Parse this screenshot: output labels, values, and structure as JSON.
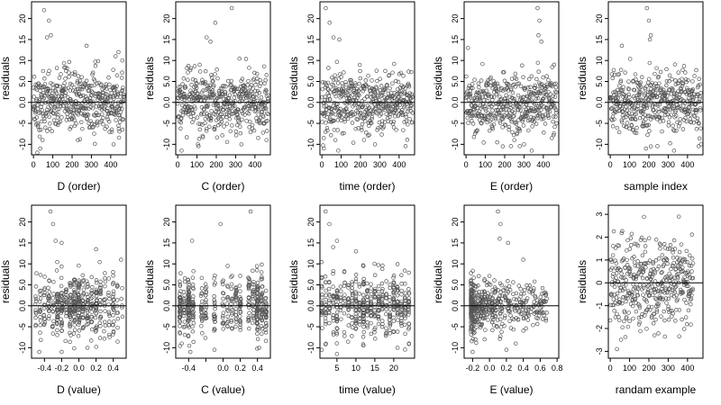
{
  "chart_data": [
    {
      "id": "p1",
      "type": "scatter",
      "xlabel": "D (order)",
      "ylabel": "residuals",
      "xlim": [
        -10,
        480
      ],
      "ylim": [
        -12.5,
        24
      ],
      "xticks": [
        0,
        100,
        200,
        300,
        400
      ],
      "xtick_labels": [
        "0",
        "100",
        "200",
        "300",
        "400"
      ],
      "yticks": [
        -10,
        -5,
        0,
        5,
        10,
        15,
        20
      ],
      "ytick_labels": [
        "-10",
        "-5",
        "0.0",
        "5.0",
        "10",
        "15",
        "20"
      ],
      "hline": 0,
      "dist": {
        "kind": "index",
        "n": 470,
        "y_scale": 3.6,
        "outliers": [
          [
            55,
            22
          ],
          [
            70,
            15.5
          ],
          [
            80,
            19.5
          ],
          [
            90,
            16
          ],
          [
            275,
            13.5
          ],
          [
            425,
            11
          ],
          [
            440,
            12
          ],
          [
            460,
            10
          ],
          [
            20,
            -12
          ],
          [
            35,
            -11
          ],
          [
            230,
            -9
          ],
          [
            415,
            -10
          ]
        ]
      }
    },
    {
      "id": "p2",
      "type": "scatter",
      "xlabel": "C (order)",
      "ylabel": "residuals",
      "xlim": [
        -10,
        480
      ],
      "ylim": [
        -12.5,
        24
      ],
      "xticks": [
        0,
        100,
        200,
        300,
        400
      ],
      "xtick_labels": [
        "0",
        "100",
        "200",
        "300",
        "400"
      ],
      "yticks": [
        -10,
        -5,
        0,
        5,
        10,
        15,
        20
      ],
      "ytick_labels": [
        "-10",
        "-5",
        "0.0",
        "5.0",
        "10",
        "15",
        "20"
      ],
      "hline": 0,
      "dist": {
        "kind": "index",
        "n": 470,
        "y_scale": 3.6,
        "outliers": [
          [
            195,
            19
          ],
          [
            280,
            22.5
          ],
          [
            150,
            15.5
          ],
          [
            170,
            14.5
          ],
          [
            20,
            -11.5
          ],
          [
            105,
            -10
          ],
          [
            330,
            -10
          ],
          [
            460,
            -9
          ]
        ]
      }
    },
    {
      "id": "p3",
      "type": "scatter",
      "xlabel": "time (order)",
      "ylabel": "residuals",
      "xlim": [
        -10,
        480
      ],
      "ylim": [
        -12.5,
        24
      ],
      "xticks": [
        0,
        100,
        200,
        300,
        400
      ],
      "xtick_labels": [
        "0",
        "100",
        "200",
        "300",
        "400"
      ],
      "yticks": [
        -10,
        -5,
        0,
        5,
        10,
        15,
        20
      ],
      "ytick_labels": [
        "-10",
        "-5",
        "0.0",
        "5.0",
        "10",
        "15",
        "20"
      ],
      "hline": 0,
      "dist": {
        "kind": "index",
        "n": 470,
        "y_scale": 3.6,
        "outliers": [
          [
            20,
            22.5
          ],
          [
            40,
            19
          ],
          [
            60,
            15.5
          ],
          [
            90,
            15
          ],
          [
            10,
            -11
          ],
          [
            85,
            -11.5
          ],
          [
            70,
            -9
          ],
          [
            275,
            -10
          ]
        ]
      }
    },
    {
      "id": "p4",
      "type": "scatter",
      "xlabel": "E (order)",
      "ylabel": "residuals",
      "xlim": [
        -10,
        480
      ],
      "ylim": [
        -12.5,
        24
      ],
      "xticks": [
        0,
        100,
        200,
        300,
        400
      ],
      "xtick_labels": [
        "0",
        "100",
        "200",
        "300",
        "400"
      ],
      "yticks": [
        -10,
        -5,
        0,
        5,
        10,
        15,
        20
      ],
      "ytick_labels": [
        "-10",
        "-5",
        "0.0",
        "5.0",
        "10",
        "15",
        "20"
      ],
      "hline": 0,
      "dist": {
        "kind": "index",
        "n": 470,
        "y_scale": 3.6,
        "outliers": [
          [
            370,
            22.5
          ],
          [
            380,
            19.5
          ],
          [
            375,
            16
          ],
          [
            390,
            14.5
          ],
          [
            10,
            13
          ],
          [
            300,
            -10
          ],
          [
            340,
            -11.5
          ],
          [
            250,
            -9
          ],
          [
            190,
            -10.5
          ]
        ]
      }
    },
    {
      "id": "p5",
      "type": "scatter",
      "xlabel": "sample index",
      "ylabel": "residuals",
      "xlim": [
        -10,
        480
      ],
      "ylim": [
        -12.5,
        24
      ],
      "xticks": [
        0,
        100,
        200,
        300,
        400
      ],
      "xtick_labels": [
        "0",
        "100",
        "200",
        "300",
        "400"
      ],
      "yticks": [
        -10,
        -5,
        0,
        5,
        10,
        15,
        20
      ],
      "ytick_labels": [
        "-10",
        "-5",
        "0.0",
        "5.0",
        "10",
        "15",
        "20"
      ],
      "hline": 0,
      "dist": {
        "kind": "index",
        "n": 470,
        "y_scale": 3.6,
        "outliers": [
          [
            190,
            22.5
          ],
          [
            200,
            19.5
          ],
          [
            210,
            16
          ],
          [
            205,
            15
          ],
          [
            60,
            13.5
          ],
          [
            185,
            -11
          ],
          [
            210,
            -10.5
          ],
          [
            330,
            -11.5
          ],
          [
            470,
            -10
          ]
        ]
      }
    },
    {
      "id": "p6",
      "type": "scatter",
      "xlabel": "D (value)",
      "ylabel": "residuals",
      "xlim": [
        -0.55,
        0.55
      ],
      "ylim": [
        -12.5,
        24
      ],
      "xticks": [
        -0.4,
        -0.2,
        0,
        0.2,
        0.4
      ],
      "xtick_labels": [
        "-0.4",
        "-0.2",
        "0.0",
        "0.2",
        "0.4"
      ],
      "yticks": [
        -10,
        -5,
        0,
        5,
        10,
        15,
        20
      ],
      "ytick_labels": [
        "-10",
        "-5",
        "0.0",
        "5.0",
        "10",
        "15",
        "20"
      ],
      "hline": 0,
      "dist": {
        "kind": "levels",
        "n": 470,
        "y_scale": 3.6,
        "levels": [
          -0.5,
          -0.45,
          -0.4,
          -0.35,
          -0.3,
          -0.25,
          -0.2,
          -0.15,
          -0.1,
          -0.05,
          0,
          0.05,
          0.1,
          0.15,
          0.2,
          0.25,
          0.3,
          0.35,
          0.4,
          0.45,
          0.5
        ],
        "weights": [
          1,
          1.5,
          2,
          2,
          2.5,
          3,
          3,
          3,
          3.5,
          3.5,
          4,
          3.5,
          3,
          3,
          3,
          3,
          2,
          2,
          1.5,
          1,
          0.5
        ],
        "jitter": 0.008,
        "outliers": [
          [
            -0.33,
            22.5
          ],
          [
            -0.3,
            19.5
          ],
          [
            -0.27,
            15.5
          ],
          [
            -0.2,
            15
          ],
          [
            0.2,
            13.5
          ],
          [
            0.49,
            11
          ],
          [
            -0.46,
            -11
          ],
          [
            -0.2,
            -11
          ],
          [
            0.1,
            -10
          ]
        ]
      }
    },
    {
      "id": "p7",
      "type": "scatter",
      "xlabel": "C (value)",
      "ylabel": "residuals",
      "xlim": [
        -0.55,
        0.55
      ],
      "ylim": [
        -12.5,
        24
      ],
      "xticks": [
        -0.4,
        -0.2,
        0,
        0.2,
        0.4
      ],
      "xtick_labels": [
        "-0.4",
        "",
        "0.0",
        "0.2",
        "0.4"
      ],
      "yticks": [
        -10,
        -5,
        0,
        5,
        10,
        15,
        20
      ],
      "ytick_labels": [
        "-10",
        "-5",
        "0.0",
        "5.0",
        "10",
        "15",
        "20"
      ],
      "hline": 0,
      "dist": {
        "kind": "levels",
        "n": 470,
        "y_scale": 3.6,
        "levels": [
          -0.5,
          -0.45,
          -0.4,
          -0.35,
          -0.25,
          -0.2,
          -0.1,
          0,
          0.05,
          0.1,
          0.15,
          0.2,
          0.3,
          0.35,
          0.4,
          0.45,
          0.5
        ],
        "weights": [
          3,
          2,
          5,
          2,
          2,
          2,
          2,
          2,
          2,
          2,
          2,
          2,
          2,
          2,
          5,
          3,
          2
        ],
        "jitter": 0.008,
        "outliers": [
          [
            -0.03,
            19.5
          ],
          [
            0.32,
            22.5
          ],
          [
            -0.36,
            15.5
          ],
          [
            -0.38,
            -11
          ],
          [
            -0.1,
            -10.5
          ],
          [
            0.42,
            -10
          ],
          [
            -0.48,
            -9
          ]
        ]
      }
    },
    {
      "id": "p8",
      "type": "scatter",
      "xlabel": "time (value)",
      "ylabel": "residuals",
      "xlim": [
        0.5,
        25.5
      ],
      "ylim": [
        -12.5,
        24
      ],
      "xticks": [
        5,
        10,
        15,
        20
      ],
      "xtick_labels": [
        "5",
        "10",
        "15",
        "20"
      ],
      "yticks": [
        -10,
        -5,
        0,
        5,
        10,
        15,
        20
      ],
      "ytick_labels": [
        "-10",
        "-5",
        "0.0",
        "5.0",
        "10",
        "15",
        "20"
      ],
      "hline": 0,
      "dist": {
        "kind": "levels",
        "n": 470,
        "y_scale": 3.6,
        "levels": [
          1,
          2,
          3,
          4,
          5,
          6,
          7,
          8,
          9,
          10,
          11,
          12,
          13,
          14,
          15,
          16,
          17,
          18,
          19,
          20,
          21,
          22,
          23,
          24
        ],
        "weights": [
          2,
          2,
          2,
          2,
          2,
          2,
          2,
          2,
          2,
          2,
          2,
          4,
          2,
          2,
          2,
          2,
          2,
          2,
          2,
          2,
          2,
          2,
          2,
          3
        ],
        "jitter": 0.1,
        "outliers": [
          [
            2,
            22.5
          ],
          [
            3,
            19.5
          ],
          [
            5,
            15.5
          ],
          [
            4,
            14
          ],
          [
            10,
            13
          ],
          [
            1,
            -10.5
          ],
          [
            5,
            -11.5
          ],
          [
            12,
            -9.5
          ],
          [
            21,
            -10
          ],
          [
            24,
            -9
          ]
        ]
      }
    },
    {
      "id": "p9",
      "type": "scatter",
      "xlabel": "E (value)",
      "ylabel": "residuals",
      "xlim": [
        -0.3,
        0.82
      ],
      "ylim": [
        -12.5,
        24
      ],
      "xticks": [
        -0.2,
        0,
        0.2,
        0.4,
        0.6,
        0.8
      ],
      "xtick_labels": [
        "-0.2",
        "0.0",
        "0.2",
        "0.4",
        "0.6",
        "0.8"
      ],
      "yticks": [
        -10,
        -5,
        0,
        5,
        10,
        15,
        20
      ],
      "ytick_labels": [
        "-10",
        "-5",
        "0.0",
        "5.0",
        "10",
        "15",
        "20"
      ],
      "hline": 0,
      "dist": {
        "kind": "skewed",
        "n": 470,
        "y_scale": 3.6,
        "x_min": -0.22,
        "x_spread": 0.18,
        "outliers": [
          [
            0.1,
            22.5
          ],
          [
            0.13,
            19.5
          ],
          [
            0.12,
            16
          ],
          [
            0.22,
            15
          ],
          [
            0.4,
            11
          ],
          [
            -0.2,
            -11
          ],
          [
            0.2,
            -10.5
          ],
          [
            0.31,
            -9
          ]
        ]
      }
    },
    {
      "id": "p10",
      "type": "scatter",
      "xlabel": "randam example",
      "ylabel": "residuals",
      "xlim": [
        -10,
        480
      ],
      "ylim": [
        -3.3,
        3.4
      ],
      "xticks": [
        0,
        100,
        200,
        300,
        400
      ],
      "xtick_labels": [
        "0",
        "100",
        "200",
        "300",
        "400"
      ],
      "yticks": [
        -3,
        -2,
        -1,
        0,
        1,
        2,
        3
      ],
      "ytick_labels": [
        "-3",
        "-2",
        "-1",
        "0",
        "1",
        "2",
        "3"
      ],
      "hline": 0,
      "dist": {
        "kind": "index",
        "n": 430,
        "y_scale": 1.0,
        "outliers": []
      }
    }
  ]
}
